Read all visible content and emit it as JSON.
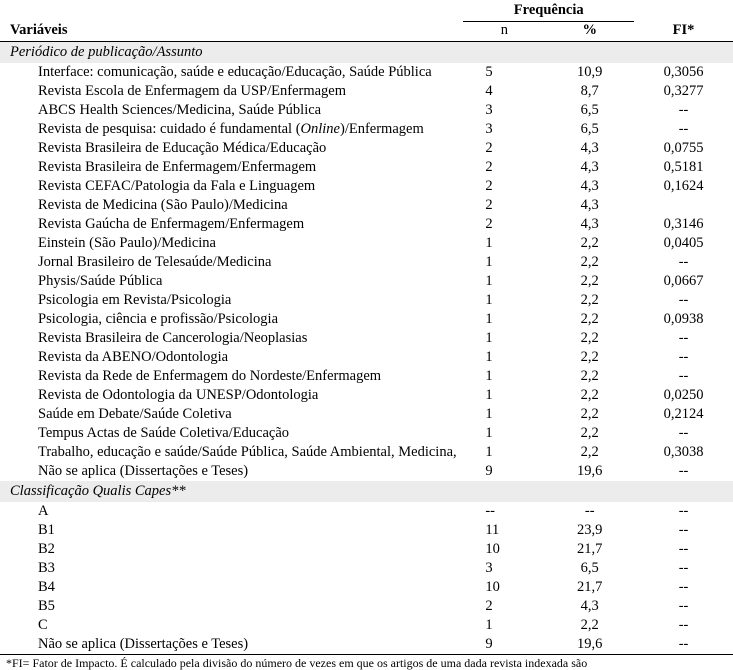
{
  "header": {
    "variaveis": "Variáveis",
    "frequencia": "Frequência",
    "n": "n",
    "pct": "%",
    "fi": "FI*"
  },
  "sections": [
    {
      "title": "Periódico de publicação/Assunto",
      "rows": [
        {
          "label": "Interface: comunicação, saúde e educação/Educação, Saúde Pública",
          "n": "5",
          "pct": "10,9",
          "fi": "0,3056"
        },
        {
          "label": "Revista Escola de Enfermagem da USP/Enfermagem",
          "n": "4",
          "pct": "8,7",
          "fi": "0,3277"
        },
        {
          "label": "ABCS Health Sciences/Medicina, Saúde Pública",
          "n": "3",
          "pct": "6,5",
          "fi": "--"
        },
        {
          "label_html": "Revista de pesquisa: cuidado é fundamental (<span class=\"ital\">Online</span>)/Enfermagem",
          "n": "3",
          "pct": "6,5",
          "fi": "--"
        },
        {
          "label": "Revista Brasileira de Educação Médica/Educação",
          "n": "2",
          "pct": "4,3",
          "fi": "0,0755"
        },
        {
          "label": "Revista Brasileira de Enfermagem/Enfermagem",
          "n": "2",
          "pct": "4,3",
          "fi": "0,5181"
        },
        {
          "label": "Revista CEFAC/Patologia da Fala e Linguagem",
          "n": "2",
          "pct": "4,3",
          "fi": "0,1624"
        },
        {
          "label": "Revista de Medicina (São Paulo)/Medicina",
          "n": "2",
          "pct": "4,3",
          "fi": ""
        },
        {
          "label": "Revista Gaúcha de Enfermagem/Enfermagem",
          "n": "2",
          "pct": "4,3",
          "fi": "0,3146"
        },
        {
          "label": "Einstein (São Paulo)/Medicina",
          "n": "1",
          "pct": "2,2",
          "fi": "0,0405"
        },
        {
          "label": "Jornal Brasileiro de Telesaúde/Medicina",
          "n": "1",
          "pct": "2,2",
          "fi": "--"
        },
        {
          "label": "Physis/Saúde Pública",
          "n": "1",
          "pct": "2,2",
          "fi": "0,0667"
        },
        {
          "label": "Psicologia em Revista/Psicologia",
          "n": "1",
          "pct": "2,2",
          "fi": "--"
        },
        {
          "label": "Psicologia, ciência e profissão/Psicologia",
          "n": "1",
          "pct": "2,2",
          "fi": "0,0938"
        },
        {
          "label": "Revista Brasileira de Cancerologia/Neoplasias",
          "n": "1",
          "pct": "2,2",
          "fi": "--"
        },
        {
          "label": "Revista da ABENO/Odontologia",
          "n": "1",
          "pct": "2,2",
          "fi": "--"
        },
        {
          "label": "Revista da Rede de Enfermagem do Nordeste/Enfermagem",
          "n": "1",
          "pct": "2,2",
          "fi": "--"
        },
        {
          "label": "Revista de Odontologia da UNESP/Odontologia",
          "n": "1",
          "pct": "2,2",
          "fi": "0,0250"
        },
        {
          "label": "Saúde em Debate/Saúde Coletiva",
          "n": "1",
          "pct": "2,2",
          "fi": "0,2124"
        },
        {
          "label": "Tempus Actas de Saúde Coletiva/Educação",
          "n": "1",
          "pct": "2,2",
          "fi": "--"
        },
        {
          "label": "Trabalho, educação e saúde/Saúde Pública, Saúde Ambiental, Medicina,",
          "n": "1",
          "pct": "2,2",
          "fi": "0,3038"
        },
        {
          "label": "Não se aplica (Dissertações e Teses)",
          "n": "9",
          "pct": "19,6",
          "fi": "--"
        }
      ]
    },
    {
      "title": "Classificação Qualis Capes**",
      "rows": [
        {
          "label": "A",
          "n": "--",
          "pct": "--",
          "fi": "--"
        },
        {
          "label": "B1",
          "n": "11",
          "pct": "23,9",
          "fi": "--"
        },
        {
          "label": "B2",
          "n": "10",
          "pct": "21,7",
          "fi": "--"
        },
        {
          "label": "B3",
          "n": "3",
          "pct": "6,5",
          "fi": "--"
        },
        {
          "label": "B4",
          "n": "10",
          "pct": "21,7",
          "fi": "--"
        },
        {
          "label": "B5",
          "n": "2",
          "pct": "4,3",
          "fi": "--"
        },
        {
          "label": "C",
          "n": "1",
          "pct": "2,2",
          "fi": "--"
        },
        {
          "label": "Não se aplica (Dissertações e Teses)",
          "n": "9",
          "pct": "19,6",
          "fi": "--"
        }
      ]
    }
  ],
  "footnote": "*FI= Fator de Impacto. É calculado pela divisão do número de vezes em que os artigos de uma dada revista indexada são"
}
